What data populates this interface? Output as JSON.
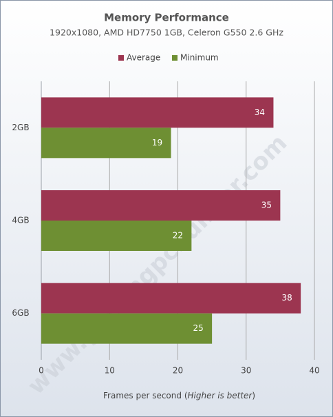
{
  "chart_data": {
    "type": "hbar",
    "title": "Memory Performance",
    "subtitle": "1920x1080, AMD HD7750 1GB, Celeron G550 2.6 GHz",
    "categories": [
      "2GB",
      "4GB",
      "6GB"
    ],
    "series": [
      {
        "name": "Average",
        "color": "#9c3550",
        "values": [
          34,
          35,
          38
        ]
      },
      {
        "name": "Minimum",
        "color": "#6e8f33",
        "values": [
          19,
          22,
          25
        ]
      }
    ],
    "xlim": [
      0,
      40
    ],
    "xticks": [
      0,
      10,
      20,
      30,
      40
    ],
    "grid": true,
    "x_label": [
      "Frames per second (",
      "Higher is better",
      ")"
    ],
    "legend": "top",
    "watermark": "www.gamingpcbuilder.com"
  }
}
